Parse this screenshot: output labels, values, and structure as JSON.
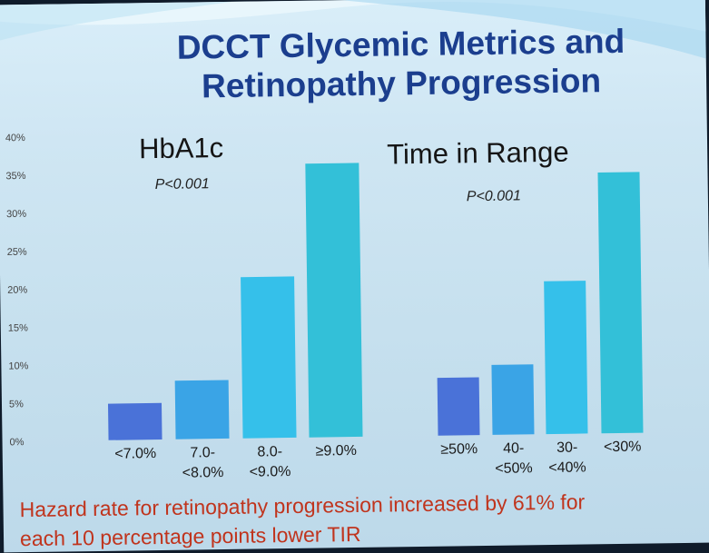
{
  "slide": {
    "title_line1": "DCCT Glycemic Metrics and",
    "title_line2": "Retinopathy Progression",
    "caption_line1": "Hazard rate for retinopathy progression increased by 61% for",
    "caption_line2": "each 10 percentage points lower TIR"
  },
  "colors": {
    "title": "#1b3e8e",
    "caption": "#c0341d",
    "bar_shades": [
      "#4a72d8",
      "#3aa4e6",
      "#35c0ea",
      "#33c0d8"
    ]
  },
  "chart_data": [
    {
      "type": "bar",
      "title": "HbA1c",
      "annotation": "P<0.001",
      "categories": [
        [
          "<7.0%"
        ],
        [
          "7.0-",
          "<8.0%"
        ],
        [
          "8.0-",
          "<9.0%"
        ],
        [
          "≥9.0%"
        ]
      ],
      "values": [
        4.8,
        7.7,
        21.2,
        36.0
      ],
      "ylim": [
        0,
        40
      ],
      "yticks": [
        "0%",
        "5%",
        "10%",
        "15%",
        "20%",
        "25%",
        "30%",
        "35%",
        "40%"
      ],
      "grid": false
    },
    {
      "type": "bar",
      "title": "Time in Range",
      "annotation": "P<0.001",
      "categories": [
        [
          "≥50%"
        ],
        [
          "40-",
          "<50%"
        ],
        [
          "30-",
          "<40%"
        ],
        [
          "<30%"
        ]
      ],
      "values": [
        7.6,
        9.2,
        20.1,
        34.3
      ],
      "ylim": [
        0,
        40
      ],
      "grid": false
    }
  ]
}
